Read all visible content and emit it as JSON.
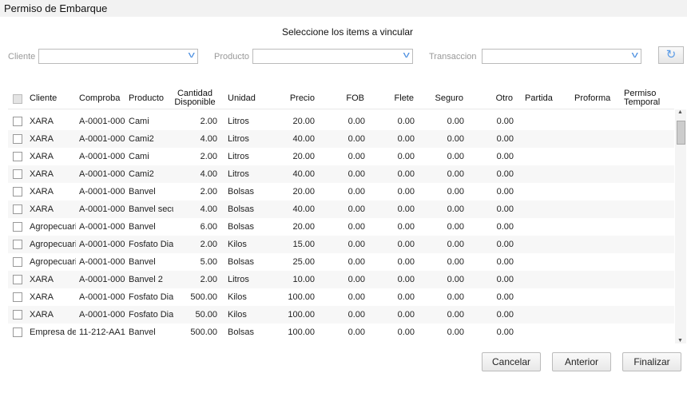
{
  "window": {
    "title": "Permiso de Embarque"
  },
  "subtitle": "Seleccione los items a vincular",
  "filters": {
    "cliente_label": "Cliente",
    "producto_label": "Producto",
    "transaccion_label": "Transaccion",
    "cliente_value": "",
    "producto_value": "",
    "transaccion_value": ""
  },
  "icons": {
    "refresh": "refresh-icon",
    "chevron": "chevron-down-icon"
  },
  "columns": {
    "cliente": "Cliente",
    "comproba": "Comproba",
    "producto": "Producto",
    "cantidad1": "Cantidad",
    "cantidad2": "Disponible",
    "unidad": "Unidad",
    "precio": "Precio",
    "fob": "FOB",
    "flete": "Flete",
    "seguro": "Seguro",
    "otro": "Otro",
    "partida": "Partida",
    "proforma": "Proforma",
    "permiso1": "Permiso",
    "permiso2": "Temporal"
  },
  "rows": [
    {
      "cliente": "XARA",
      "comproba": "A-0001-000",
      "producto": "Cami",
      "cantidad": "2.00",
      "unidad": "Litros",
      "precio": "20.00",
      "fob": "0.00",
      "flete": "0.00",
      "seguro": "0.00",
      "otro": "0.00"
    },
    {
      "cliente": "XARA",
      "comproba": "A-0001-000",
      "producto": "Cami2",
      "cantidad": "4.00",
      "unidad": "Litros",
      "precio": "40.00",
      "fob": "0.00",
      "flete": "0.00",
      "seguro": "0.00",
      "otro": "0.00"
    },
    {
      "cliente": "XARA",
      "comproba": "A-0001-000",
      "producto": "Cami",
      "cantidad": "2.00",
      "unidad": "Litros",
      "precio": "20.00",
      "fob": "0.00",
      "flete": "0.00",
      "seguro": "0.00",
      "otro": "0.00"
    },
    {
      "cliente": "XARA",
      "comproba": "A-0001-000",
      "producto": "Cami2",
      "cantidad": "4.00",
      "unidad": "Litros",
      "precio": "40.00",
      "fob": "0.00",
      "flete": "0.00",
      "seguro": "0.00",
      "otro": "0.00"
    },
    {
      "cliente": "XARA",
      "comproba": "A-0001-000",
      "producto": "Banvel",
      "cantidad": "2.00",
      "unidad": "Bolsas",
      "precio": "20.00",
      "fob": "0.00",
      "flete": "0.00",
      "seguro": "0.00",
      "otro": "0.00"
    },
    {
      "cliente": "XARA",
      "comproba": "A-0001-000",
      "producto": "Banvel secu",
      "cantidad": "4.00",
      "unidad": "Bolsas",
      "precio": "40.00",
      "fob": "0.00",
      "flete": "0.00",
      "seguro": "0.00",
      "otro": "0.00"
    },
    {
      "cliente": "Agropecuari",
      "comproba": "A-0001-000",
      "producto": "Banvel",
      "cantidad": "6.00",
      "unidad": "Bolsas",
      "precio": "20.00",
      "fob": "0.00",
      "flete": "0.00",
      "seguro": "0.00",
      "otro": "0.00"
    },
    {
      "cliente": "Agropecuari",
      "comproba": "A-0001-000",
      "producto": "Fosfato Diar",
      "cantidad": "2.00",
      "unidad": "Kilos",
      "precio": "15.00",
      "fob": "0.00",
      "flete": "0.00",
      "seguro": "0.00",
      "otro": "0.00"
    },
    {
      "cliente": "Agropecuari",
      "comproba": "A-0001-000",
      "producto": "Banvel",
      "cantidad": "5.00",
      "unidad": "Bolsas",
      "precio": "25.00",
      "fob": "0.00",
      "flete": "0.00",
      "seguro": "0.00",
      "otro": "0.00"
    },
    {
      "cliente": "XARA",
      "comproba": "A-0001-000",
      "producto": "Banvel 2",
      "cantidad": "2.00",
      "unidad": "Litros",
      "precio": "10.00",
      "fob": "0.00",
      "flete": "0.00",
      "seguro": "0.00",
      "otro": "0.00"
    },
    {
      "cliente": "XARA",
      "comproba": "A-0001-000",
      "producto": "Fosfato Diar",
      "cantidad": "500.00",
      "unidad": "Kilos",
      "precio": "100.00",
      "fob": "0.00",
      "flete": "0.00",
      "seguro": "0.00",
      "otro": "0.00"
    },
    {
      "cliente": "XARA",
      "comproba": "A-0001-000",
      "producto": "Fosfato Diar",
      "cantidad": "50.00",
      "unidad": "Kilos",
      "precio": "100.00",
      "fob": "0.00",
      "flete": "0.00",
      "seguro": "0.00",
      "otro": "0.00"
    },
    {
      "cliente": "Empresa de",
      "comproba": "11-212-AA1",
      "producto": "Banvel",
      "cantidad": "500.00",
      "unidad": "Bolsas",
      "precio": "100.00",
      "fob": "0.00",
      "flete": "0.00",
      "seguro": "0.00",
      "otro": "0.00"
    }
  ],
  "buttons": {
    "cancel": "Cancelar",
    "back": "Anterior",
    "finish": "Finalizar"
  }
}
